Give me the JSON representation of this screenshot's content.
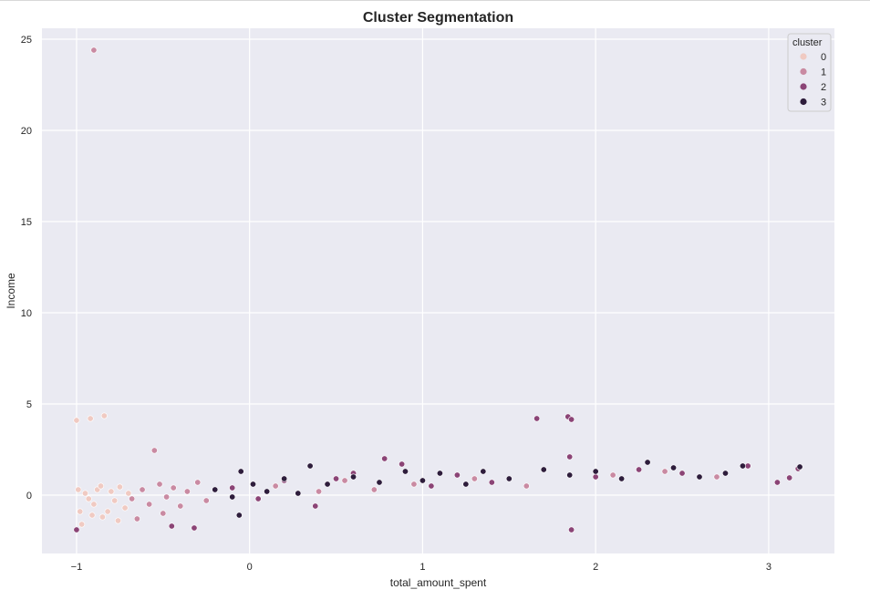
{
  "chart_data": {
    "type": "scatter",
    "title": "Cluster Segmentation",
    "xlabel": "total_amount_spent",
    "ylabel": "Income",
    "xlim": [
      -1.2,
      3.38
    ],
    "ylim": [
      -3.2,
      25.6
    ],
    "xticks": [
      -1,
      0,
      1,
      2,
      3
    ],
    "yticks": [
      0,
      5,
      10,
      15,
      20,
      25
    ],
    "grid": true,
    "legend": {
      "title": "cluster",
      "placement": "top-right"
    },
    "colors": {
      "0": "#f0cac2",
      "1": "#c98aa2",
      "2": "#8b4476",
      "3": "#2e1d3c"
    },
    "series": [
      {
        "name": "0",
        "color": "#f0cac2",
        "points": [
          [
            -1.0,
            4.1
          ],
          [
            -0.92,
            4.2
          ],
          [
            -0.84,
            4.35
          ],
          [
            -0.98,
            -0.9
          ],
          [
            -0.95,
            0.1
          ],
          [
            -0.9,
            -0.5
          ],
          [
            -0.88,
            0.3
          ],
          [
            -0.85,
            -1.2
          ],
          [
            -0.8,
            0.2
          ],
          [
            -0.78,
            -0.3
          ],
          [
            -0.75,
            0.45
          ],
          [
            -0.72,
            -0.7
          ],
          [
            -0.7,
            0.1
          ],
          [
            -0.97,
            -1.6
          ],
          [
            -0.93,
            -0.2
          ],
          [
            -0.86,
            0.5
          ],
          [
            -0.82,
            -0.9
          ],
          [
            -0.76,
            -1.4
          ],
          [
            -0.99,
            0.3
          ],
          [
            -0.91,
            -1.1
          ]
        ]
      },
      {
        "name": "1",
        "color": "#c98aa2",
        "points": [
          [
            -0.9,
            24.4
          ],
          [
            -0.55,
            2.45
          ],
          [
            -0.68,
            -0.2
          ],
          [
            -0.62,
            0.3
          ],
          [
            -0.58,
            -0.5
          ],
          [
            -0.52,
            0.6
          ],
          [
            -0.48,
            -0.1
          ],
          [
            -0.44,
            0.4
          ],
          [
            -0.4,
            -0.6
          ],
          [
            -0.36,
            0.2
          ],
          [
            -0.3,
            0.7
          ],
          [
            -0.25,
            -0.3
          ],
          [
            0.15,
            0.5
          ],
          [
            0.4,
            0.2
          ],
          [
            0.55,
            0.8
          ],
          [
            0.72,
            0.3
          ],
          [
            0.95,
            0.6
          ],
          [
            1.3,
            0.9
          ],
          [
            1.6,
            0.5
          ],
          [
            2.1,
            1.1
          ],
          [
            2.4,
            1.3
          ],
          [
            2.7,
            1.0
          ],
          [
            -0.65,
            -1.3
          ],
          [
            -0.5,
            -1.0
          ]
        ]
      },
      {
        "name": "2",
        "color": "#8b4476",
        "points": [
          [
            -1.0,
            -1.9
          ],
          [
            -0.32,
            -1.8
          ],
          [
            -0.1,
            0.4
          ],
          [
            0.05,
            -0.2
          ],
          [
            0.2,
            0.8
          ],
          [
            0.38,
            -0.6
          ],
          [
            0.5,
            0.9
          ],
          [
            0.6,
            1.2
          ],
          [
            0.78,
            2.0
          ],
          [
            0.88,
            1.7
          ],
          [
            1.05,
            0.5
          ],
          [
            1.2,
            1.1
          ],
          [
            1.4,
            0.7
          ],
          [
            1.66,
            4.2
          ],
          [
            1.84,
            4.3
          ],
          [
            1.86,
            4.15
          ],
          [
            1.86,
            -1.9
          ],
          [
            1.85,
            2.1
          ],
          [
            2.0,
            1.0
          ],
          [
            2.25,
            1.4
          ],
          [
            2.5,
            1.2
          ],
          [
            2.88,
            1.6
          ],
          [
            3.05,
            0.7
          ],
          [
            3.12,
            0.95
          ],
          [
            3.17,
            1.45
          ],
          [
            -0.45,
            -1.7
          ]
        ]
      },
      {
        "name": "3",
        "color": "#2e1d3c",
        "points": [
          [
            -0.2,
            0.3
          ],
          [
            -0.1,
            -0.1
          ],
          [
            -0.05,
            1.3
          ],
          [
            -0.06,
            -1.1
          ],
          [
            0.02,
            0.6
          ],
          [
            0.1,
            0.2
          ],
          [
            0.2,
            0.9
          ],
          [
            0.28,
            0.1
          ],
          [
            0.35,
            1.6
          ],
          [
            0.45,
            0.6
          ],
          [
            0.6,
            1.0
          ],
          [
            0.75,
            0.7
          ],
          [
            0.9,
            1.3
          ],
          [
            1.0,
            0.8
          ],
          [
            1.1,
            1.2
          ],
          [
            1.25,
            0.6
          ],
          [
            1.35,
            1.3
          ],
          [
            1.5,
            0.9
          ],
          [
            1.7,
            1.4
          ],
          [
            1.85,
            1.1
          ],
          [
            2.0,
            1.3
          ],
          [
            2.15,
            0.9
          ],
          [
            2.3,
            1.8
          ],
          [
            2.45,
            1.5
          ],
          [
            2.6,
            1.0
          ],
          [
            2.75,
            1.2
          ],
          [
            2.85,
            1.6
          ],
          [
            3.18,
            1.55
          ]
        ]
      }
    ]
  }
}
